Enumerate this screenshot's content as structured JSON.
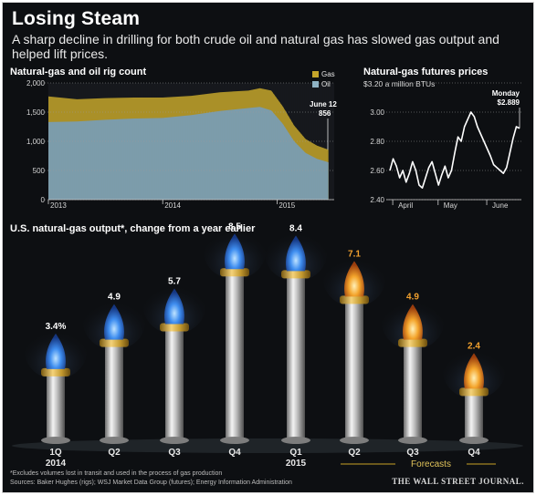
{
  "header": {
    "title": "Losing Steam",
    "subtitle": "A sharp decline in drilling for both crude oil and natural gas has slowed gas output and helped lift prices."
  },
  "colors": {
    "gas": "#c4a52a",
    "oil": "#8fb3c4",
    "price_line": "#ffffff",
    "flame_blue": "#3d7ce0",
    "flame_orange": "#f2a12e",
    "forecast_rule": "#c9a227"
  },
  "chart_data": [
    {
      "type": "area",
      "title": "Natural-gas and oil rig count",
      "legend": [
        "Gas",
        "Oil"
      ],
      "legend_position": "top-right",
      "x_tick_labels": [
        "2013",
        "2014",
        "2015"
      ],
      "ylim": [
        0,
        2000
      ],
      "y_ticks": [
        0,
        500,
        1000,
        1500,
        2000
      ],
      "y_tick_labels": [
        "0",
        "500",
        "1,000",
        "1,500",
        "2,000"
      ],
      "grid": true,
      "series": [
        {
          "name": "Oil",
          "x": [
            2013.0,
            2013.25,
            2013.5,
            2013.75,
            2014.0,
            2014.25,
            2014.5,
            2014.75,
            2014.85,
            2014.95,
            2015.05,
            2015.15,
            2015.25,
            2015.35,
            2015.45
          ],
          "values": [
            1330,
            1340,
            1370,
            1390,
            1400,
            1450,
            1520,
            1570,
            1590,
            1530,
            1300,
            1000,
            800,
            700,
            640
          ]
        },
        {
          "name": "Gas",
          "x": [
            2013.0,
            2013.25,
            2013.5,
            2013.75,
            2014.0,
            2014.25,
            2014.5,
            2014.75,
            2014.85,
            2014.95,
            2015.05,
            2015.15,
            2015.25,
            2015.35,
            2015.45
          ],
          "values": [
            440,
            380,
            370,
            360,
            350,
            330,
            320,
            300,
            320,
            340,
            300,
            270,
            240,
            225,
            216
          ]
        }
      ],
      "annotation": {
        "date": "June 12",
        "value": "856"
      }
    },
    {
      "type": "line",
      "title": "Natural-gas futures prices",
      "ylabel": "$3.20 a million BTUs",
      "ylim": [
        2.4,
        3.2
      ],
      "y_ticks": [
        2.4,
        2.6,
        2.8,
        3.0,
        3.2
      ],
      "y_tick_labels": [
        "2.40",
        "2.60",
        "2.80",
        "3.00",
        "$3.20"
      ],
      "x_tick_labels": [
        "April",
        "May",
        "June"
      ],
      "grid": true,
      "series": [
        {
          "name": "",
          "x": [
            0,
            2,
            4,
            6,
            8,
            10,
            12,
            14,
            16,
            18,
            20,
            22,
            24,
            26,
            28,
            30,
            32,
            34,
            36,
            38,
            40,
            42,
            44,
            46,
            48,
            50,
            52,
            54,
            56,
            58,
            60,
            62,
            64,
            66,
            68,
            70,
            72,
            74,
            76,
            78,
            80
          ],
          "values": [
            2.6,
            2.68,
            2.63,
            2.55,
            2.6,
            2.52,
            2.58,
            2.66,
            2.6,
            2.5,
            2.48,
            2.55,
            2.62,
            2.66,
            2.58,
            2.5,
            2.57,
            2.63,
            2.55,
            2.6,
            2.72,
            2.83,
            2.8,
            2.9,
            2.95,
            3.0,
            2.97,
            2.9,
            2.85,
            2.8,
            2.75,
            2.7,
            2.64,
            2.62,
            2.6,
            2.58,
            2.62,
            2.72,
            2.82,
            2.9,
            2.889
          ]
        }
      ],
      "annotation": {
        "label": "Monday",
        "value": "$2.889"
      }
    },
    {
      "type": "bar",
      "title": "U.S. natural-gas output*, change from a year earlier",
      "categories": [
        "1Q 2014",
        "Q2",
        "Q3",
        "Q4",
        "Q1 2015",
        "Q2",
        "Q3",
        "Q4"
      ],
      "values": [
        3.4,
        4.9,
        5.7,
        8.5,
        8.4,
        7.1,
        4.9,
        2.4
      ],
      "data_labels": [
        "3.4%",
        "4.9",
        "5.7",
        "8.5",
        "8.4",
        "7.1",
        "4.9",
        "2.4"
      ],
      "forecast": [
        false,
        false,
        false,
        false,
        false,
        true,
        true,
        true
      ],
      "forecast_label": "Forecasts"
    }
  ],
  "footer": {
    "note": "*Excludes volumes lost in transit and used in the process of gas production",
    "sources": "Sources: Baker Hughes (rigs); WSJ Market Data Group (futures); Energy Information Administration",
    "publisher": "THE WALL STREET JOURNAL."
  }
}
